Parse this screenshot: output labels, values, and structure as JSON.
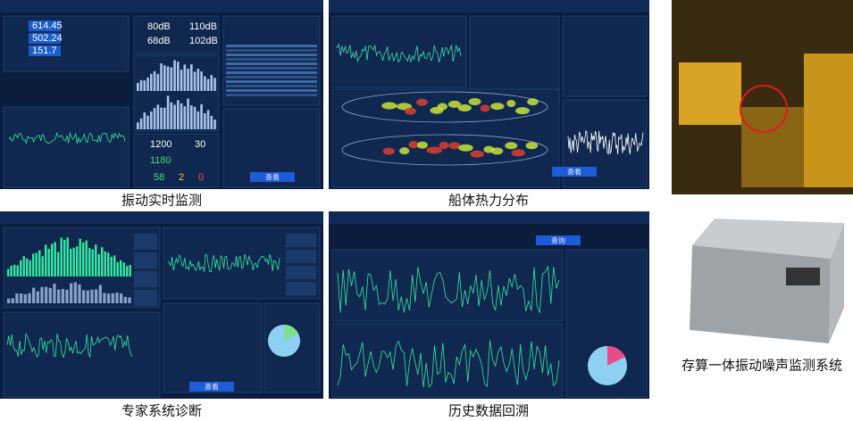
{
  "captions": {
    "realtime": "振动实时监测",
    "heatmap": "船体热力分布",
    "expert": "专家系统诊断",
    "history": "历史数据回溯",
    "device": "存算一体振动噪声监测系统"
  },
  "realtime_panel": {
    "readings": [
      "614.45",
      "502.24",
      "151.7"
    ],
    "levels": [
      "80dB",
      "110dB",
      "68dB",
      "102dB"
    ],
    "counts": [
      "1200",
      "30",
      "1180"
    ],
    "status": [
      "58",
      "2",
      "0"
    ],
    "button": "查看"
  },
  "heatmap_panel": {
    "button": "查看"
  },
  "expert_panel": {
    "button": "查看"
  },
  "history_panel": {
    "button": "查询"
  }
}
